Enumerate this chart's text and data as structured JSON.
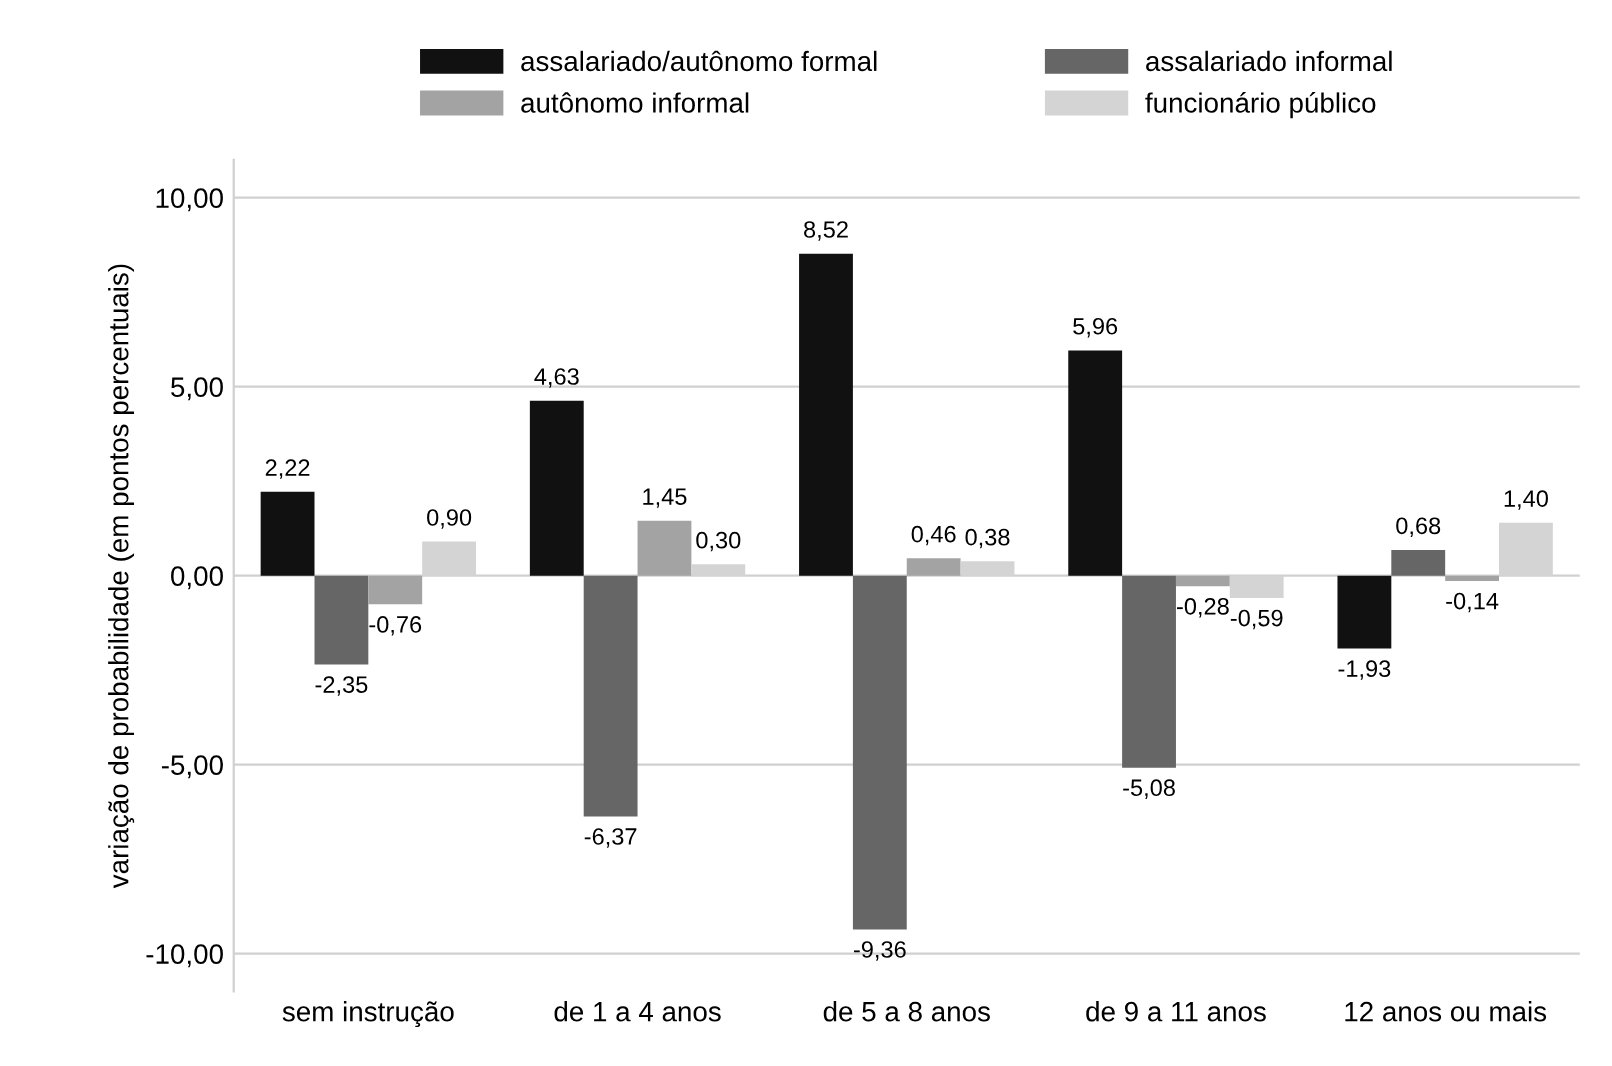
{
  "chart_data": {
    "type": "bar",
    "ylabel": "variação de probabilidade (em pontos percentuais)",
    "categories": [
      "sem instrução",
      "de 1 a 4 anos",
      "de 5 a 8 anos",
      "de 9 a 11 anos",
      "12 anos ou mais"
    ],
    "series": [
      {
        "name": "assalariado/autônomo formal",
        "color": "#111111",
        "values": [
          2.22,
          4.63,
          8.52,
          5.96,
          -1.93
        ],
        "value_labels": [
          "2,22",
          "4,63",
          "8,52",
          "5,96",
          "-1,93"
        ]
      },
      {
        "name": "assalariado informal",
        "color": "#666666",
        "values": [
          -2.35,
          -6.37,
          -9.36,
          -5.08,
          0.68
        ],
        "value_labels": [
          "-2,35",
          "-6,37",
          "-9,36",
          "-5,08",
          "0,68"
        ]
      },
      {
        "name": "autônomo informal",
        "color": "#a3a3a3",
        "values": [
          -0.76,
          1.45,
          0.46,
          -0.28,
          -0.14
        ],
        "value_labels": [
          "-0,76",
          "1,45",
          "0,46",
          "-0,28",
          "-0,14"
        ]
      },
      {
        "name": "funcionário público",
        "color": "#d4d4d4",
        "values": [
          0.9,
          0.3,
          0.38,
          -0.59,
          1.4
        ],
        "value_labels": [
          "0,90",
          "0,30",
          "0,38",
          "-0,59",
          "1,40"
        ]
      }
    ],
    "ylim": [
      -11,
      11
    ],
    "yticks": [
      {
        "value": -10,
        "label": "-10,00"
      },
      {
        "value": -5,
        "label": "-5,00"
      },
      {
        "value": 0,
        "label": "0,00"
      },
      {
        "value": 5,
        "label": "5,00"
      },
      {
        "value": 10,
        "label": "10,00"
      }
    ],
    "grid": "y",
    "legend": "top"
  }
}
